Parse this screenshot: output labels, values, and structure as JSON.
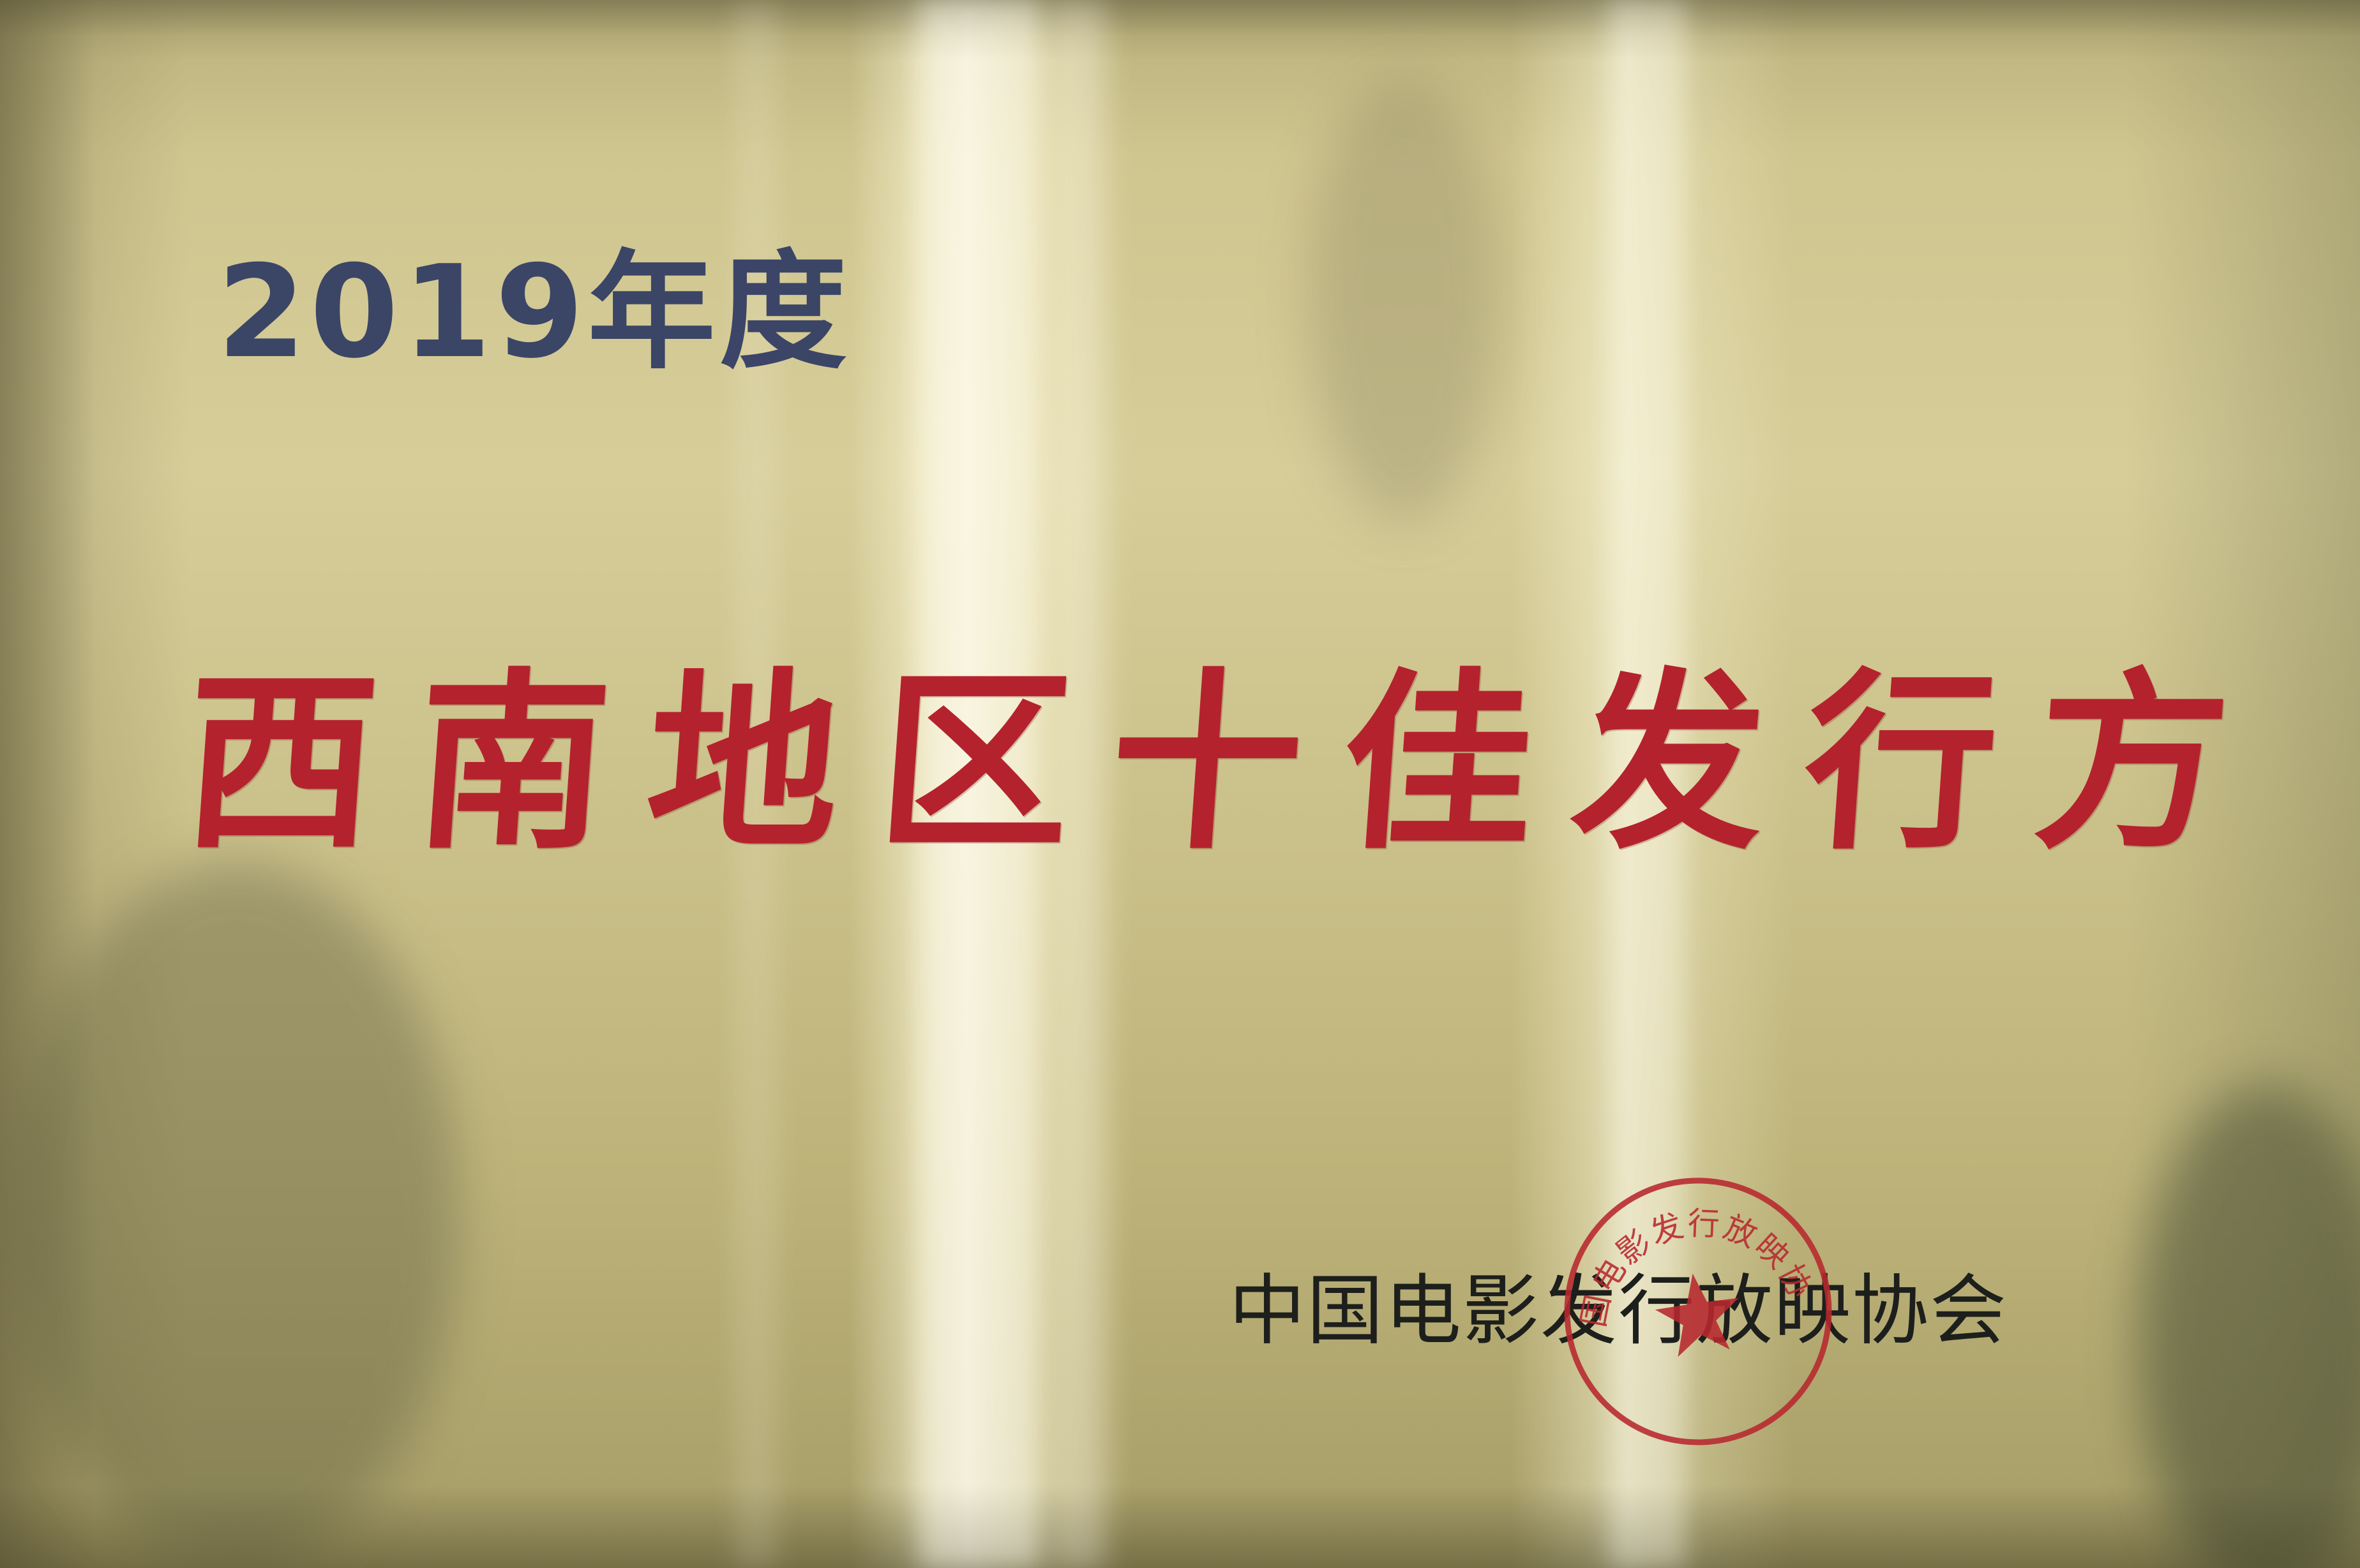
{
  "plaque": {
    "year_title": "2019年度",
    "award_title_chars": [
      "西",
      "南",
      "地",
      "区",
      "十",
      "佳",
      "发",
      "行",
      "方"
    ],
    "issuer": "中国电影发行放映协会",
    "seal": {
      "ring_text": "中国电影发行放映协会",
      "symbol": "star-icon"
    }
  },
  "colors": {
    "year_text": "#2f3a63",
    "award_text": "#b4222d",
    "issuer_text": "#1d1f1c",
    "seal_red": "#b8282f",
    "plaque_gold": "#cfc58f"
  }
}
